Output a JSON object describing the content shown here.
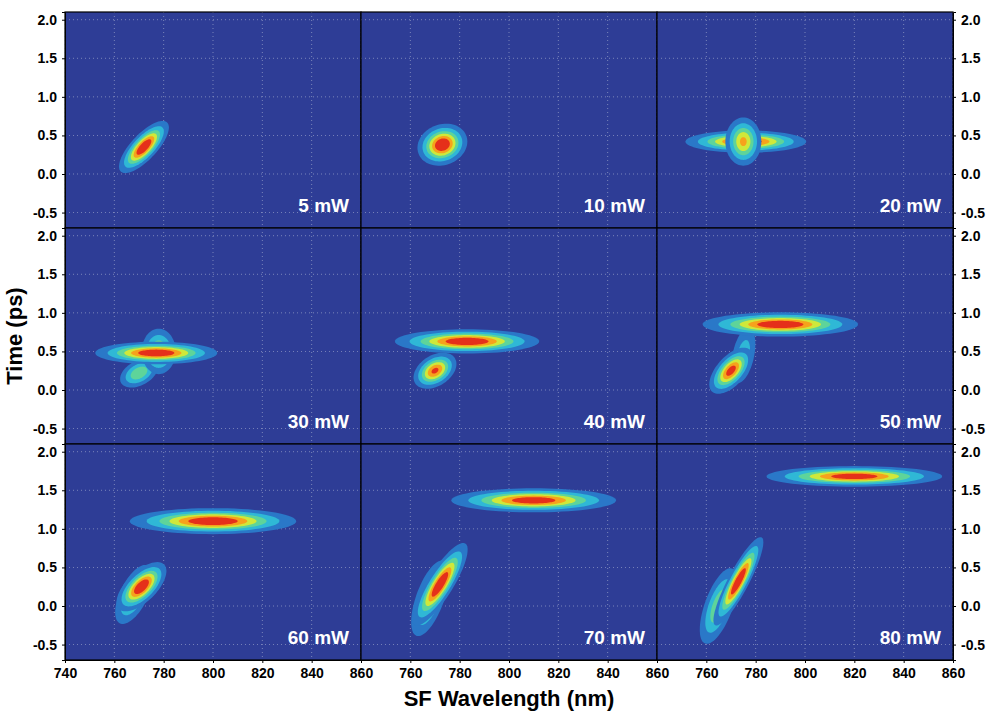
{
  "figure": {
    "x_label": "SF Wavelength (nm)",
    "y_label": "Time (ps)"
  },
  "chart_data": [
    {
      "type": "heatmap",
      "annotation": "5 mW",
      "xlim": [
        740,
        860
      ],
      "ylim": [
        -0.7,
        2.1
      ],
      "xticks": [
        740,
        760,
        780,
        800,
        820,
        840,
        860
      ],
      "yticks": [
        {
          "value": -0.5,
          "label": "-0.5"
        },
        {
          "value": 0,
          "label": "0.0"
        },
        0.5,
        {
          "value": 1,
          "label": "1.0"
        },
        1.5,
        {
          "value": 2,
          "label": "2.0"
        }
      ],
      "grid": true,
      "tick_labels": "y",
      "spots": [
        {
          "wavelength": 772,
          "time": 0.35,
          "wavelength_width": 4.5,
          "time_width": 0.1,
          "slope": 0.025,
          "intensity": 1
        }
      ]
    },
    {
      "type": "heatmap",
      "annotation": "10 mW",
      "xlim": [
        740,
        860
      ],
      "ylim": [
        -0.7,
        2.1
      ],
      "xticks": [
        760,
        780,
        800,
        820,
        840,
        860
      ],
      "yticks": [
        {
          "value": -0.5,
          "label": "-0.5"
        },
        {
          "value": 0,
          "label": "0.0"
        },
        0.5,
        {
          "value": 1,
          "label": "1.0"
        },
        1.5,
        {
          "value": 2,
          "label": "2.0"
        }
      ],
      "grid": true,
      "tick_labels": false,
      "spots": [
        {
          "wavelength": 773,
          "time": 0.38,
          "wavelength_width": 4.5,
          "time_width": 0.12,
          "slope": 0.004,
          "intensity": 1
        }
      ]
    },
    {
      "type": "heatmap",
      "annotation": "20 mW",
      "xlim": [
        740,
        860
      ],
      "ylim": [
        -0.7,
        2.1
      ],
      "xticks": [
        760,
        780,
        800,
        820,
        840,
        860
      ],
      "yticks": [
        {
          "value": -0.5,
          "label": "-0.5"
        },
        {
          "value": 0,
          "label": "0.0"
        },
        0.5,
        {
          "value": 1,
          "label": "1.0"
        },
        1.5,
        {
          "value": 2,
          "label": "2.0"
        }
      ],
      "grid": true,
      "tick_labels": "y",
      "spots": [
        {
          "wavelength": 776,
          "time": 0.42,
          "wavelength_width": 11,
          "time_width": 0.065,
          "slope": 0,
          "intensity": 0.95
        },
        {
          "wavelength": 775,
          "time": 0.42,
          "wavelength_width": 3.5,
          "time_width": 0.15,
          "slope": 0,
          "intensity": 0.7
        }
      ]
    },
    {
      "type": "heatmap",
      "annotation": "30 mW",
      "xlim": [
        740,
        860
      ],
      "ylim": [
        -0.7,
        2.1
      ],
      "xticks": [
        740,
        760,
        780,
        800,
        820,
        840,
        860
      ],
      "yticks": [
        {
          "value": -0.5,
          "label": "-0.5"
        },
        {
          "value": 0,
          "label": "0.0"
        },
        0.5,
        {
          "value": 1,
          "label": "1.0"
        },
        1.5,
        {
          "value": 2,
          "label": "2.0"
        }
      ],
      "grid": true,
      "tick_labels": "y",
      "spots": [
        {
          "wavelength": 770,
          "time": 0.22,
          "wavelength_width": 4,
          "time_width": 0.09,
          "slope": 0.01,
          "intensity": 0.5
        },
        {
          "wavelength": 778,
          "time": 0.5,
          "wavelength_width": 3.5,
          "time_width": 0.15,
          "slope": 0,
          "intensity": 0.55
        },
        {
          "wavelength": 777,
          "time": 0.48,
          "wavelength_width": 11,
          "time_width": 0.065,
          "slope": 0,
          "intensity": 1
        }
      ]
    },
    {
      "type": "heatmap",
      "annotation": "40 mW",
      "xlim": [
        740,
        860
      ],
      "ylim": [
        -0.7,
        2.1
      ],
      "xticks": [
        760,
        780,
        800,
        820,
        840,
        860
      ],
      "yticks": [
        {
          "value": -0.5,
          "label": "-0.5"
        },
        {
          "value": 0,
          "label": "0.0"
        },
        0.5,
        {
          "value": 1,
          "label": "1.0"
        },
        1.5,
        {
          "value": 2,
          "label": "2.0"
        }
      ],
      "grid": true,
      "tick_labels": false,
      "spots": [
        {
          "wavelength": 770,
          "time": 0.25,
          "wavelength_width": 4,
          "time_width": 0.1,
          "slope": 0.01,
          "intensity": 0.85
        },
        {
          "wavelength": 783,
          "time": 0.63,
          "wavelength_width": 13,
          "time_width": 0.07,
          "slope": 0,
          "intensity": 1
        }
      ]
    },
    {
      "type": "heatmap",
      "annotation": "50 mW",
      "xlim": [
        740,
        860
      ],
      "ylim": [
        -0.7,
        2.1
      ],
      "xticks": [
        760,
        780,
        800,
        820,
        840,
        860
      ],
      "yticks": [
        {
          "value": -0.5,
          "label": "-0.5"
        },
        {
          "value": 0,
          "label": "0.0"
        },
        0.5,
        {
          "value": 1,
          "label": "1.0"
        },
        1.5,
        {
          "value": 2,
          "label": "2.0"
        }
      ],
      "grid": true,
      "tick_labels": "y",
      "spots": [
        {
          "wavelength": 775,
          "time": 0.45,
          "wavelength_width": 3,
          "time_width": 0.2,
          "slope": 0.03,
          "intensity": 0.3
        },
        {
          "wavelength": 770,
          "time": 0.25,
          "wavelength_width": 4,
          "time_width": 0.11,
          "slope": 0.02,
          "intensity": 0.9
        },
        {
          "wavelength": 790,
          "time": 0.85,
          "wavelength_width": 14,
          "time_width": 0.07,
          "slope": 0,
          "intensity": 1
        }
      ]
    },
    {
      "type": "heatmap",
      "annotation": "60 mW",
      "xlim": [
        740,
        860
      ],
      "ylim": [
        -0.7,
        2.1
      ],
      "xticks": [
        740,
        760,
        780,
        800,
        820,
        840,
        860
      ],
      "yticks": [
        {
          "value": -0.5,
          "label": "-0.5"
        },
        {
          "value": 0,
          "label": "0.0"
        },
        0.5,
        {
          "value": 1,
          "label": "1.0"
        },
        1.5,
        {
          "value": 2,
          "label": "2.0"
        }
      ],
      "grid": true,
      "spots": [
        {
          "wavelength": 768,
          "time": 0.15,
          "wavelength_width": 4,
          "time_width": 0.16,
          "slope": 0.03,
          "intensity": 0.5
        },
        {
          "wavelength": 771,
          "time": 0.25,
          "wavelength_width": 4.5,
          "time_width": 0.11,
          "slope": 0.02,
          "intensity": 1
        },
        {
          "wavelength": 800,
          "time": 1.1,
          "wavelength_width": 15,
          "time_width": 0.075,
          "slope": 0,
          "intensity": 1
        }
      ]
    },
    {
      "type": "heatmap",
      "annotation": "70 mW",
      "xlim": [
        740,
        860
      ],
      "ylim": [
        -0.7,
        2.1
      ],
      "xticks": [
        760,
        780,
        800,
        820,
        840,
        860
      ],
      "yticks": [
        {
          "value": -0.5,
          "label": "-0.5"
        },
        {
          "value": 0,
          "label": "0.0"
        },
        0.5,
        {
          "value": 1,
          "label": "1.0"
        },
        1.5,
        {
          "value": 2,
          "label": "2.0"
        }
      ],
      "grid": true,
      "tick_labels": "x",
      "spots": [
        {
          "wavelength": 768,
          "time": 0.1,
          "wavelength_width": 4,
          "time_width": 0.2,
          "slope": 0.04,
          "intensity": 0.5
        },
        {
          "wavelength": 772,
          "time": 0.28,
          "wavelength_width": 5,
          "time_width": 0.13,
          "slope": 0.04,
          "intensity": 1
        },
        {
          "wavelength": 810,
          "time": 1.37,
          "wavelength_width": 15,
          "time_width": 0.07,
          "slope": 0,
          "intensity": 0.95
        }
      ]
    },
    {
      "type": "heatmap",
      "annotation": "80 mW",
      "xlim": [
        740,
        860
      ],
      "ylim": [
        -0.7,
        2.1
      ],
      "xticks": [
        760,
        780,
        800,
        820,
        840,
        860
      ],
      "yticks": [
        {
          "value": -0.5,
          "label": "-0.5"
        },
        {
          "value": 0,
          "label": "0.0"
        },
        0.5,
        {
          "value": 1,
          "label": "1.0"
        },
        1.5,
        {
          "value": 2,
          "label": "2.0"
        }
      ],
      "grid": true,
      "spots": [
        {
          "wavelength": 765,
          "time": 0.0,
          "wavelength_width": 4,
          "time_width": 0.2,
          "slope": 0.04,
          "intensity": 0.5
        },
        {
          "wavelength": 773,
          "time": 0.32,
          "wavelength_width": 4.5,
          "time_width": 0.12,
          "slope": 0.05,
          "intensity": 1
        },
        {
          "wavelength": 820,
          "time": 1.68,
          "wavelength_width": 16,
          "time_width": 0.06,
          "slope": 0,
          "intensity": 0.95
        }
      ]
    }
  ]
}
